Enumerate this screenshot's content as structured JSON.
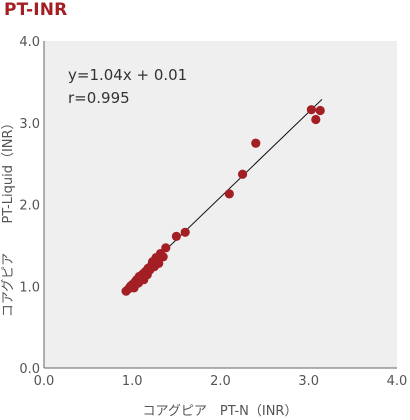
{
  "page": {
    "title": "PT-INR"
  },
  "chart_data": {
    "type": "scatter",
    "title": "",
    "xlabel": "コアグピア　PT-N（INR）",
    "ylabel_lines": [
      "コアグピア",
      "PT-Liquid（INR）"
    ],
    "xlim": [
      0.0,
      4.0
    ],
    "ylim": [
      0.0,
      4.0
    ],
    "xticks": [
      "0.0",
      "1.0",
      "2.0",
      "3.0",
      "4.0"
    ],
    "yticks": [
      "0.0",
      "1.0",
      "2.0",
      "3.0",
      "4.0"
    ],
    "plot_background": "#efefef",
    "grid": false,
    "point_color": "#a31f24",
    "regression": {
      "slope": 1.04,
      "intercept": 0.01,
      "x_range": [
        0.93,
        3.15
      ]
    },
    "annotations": [
      "y=1.04x + 0.01",
      "r=0.995"
    ],
    "points": [
      {
        "x": 0.93,
        "y": 0.94
      },
      {
        "x": 0.96,
        "y": 0.97
      },
      {
        "x": 0.98,
        "y": 1.0
      },
      {
        "x": 1.0,
        "y": 1.02
      },
      {
        "x": 1.02,
        "y": 0.98
      },
      {
        "x": 1.03,
        "y": 1.05
      },
      {
        "x": 1.05,
        "y": 1.08
      },
      {
        "x": 1.07,
        "y": 1.04
      },
      {
        "x": 1.08,
        "y": 1.12
      },
      {
        "x": 1.1,
        "y": 1.1
      },
      {
        "x": 1.12,
        "y": 1.15
      },
      {
        "x": 1.13,
        "y": 1.08
      },
      {
        "x": 1.15,
        "y": 1.18
      },
      {
        "x": 1.17,
        "y": 1.14
      },
      {
        "x": 1.18,
        "y": 1.22
      },
      {
        "x": 1.2,
        "y": 1.2
      },
      {
        "x": 1.22,
        "y": 1.26
      },
      {
        "x": 1.23,
        "y": 1.3
      },
      {
        "x": 1.25,
        "y": 1.24
      },
      {
        "x": 1.27,
        "y": 1.35
      },
      {
        "x": 1.3,
        "y": 1.28
      },
      {
        "x": 1.32,
        "y": 1.4
      },
      {
        "x": 1.35,
        "y": 1.36
      },
      {
        "x": 1.38,
        "y": 1.47
      },
      {
        "x": 1.5,
        "y": 1.61
      },
      {
        "x": 1.6,
        "y": 1.66
      },
      {
        "x": 2.1,
        "y": 2.13
      },
      {
        "x": 2.25,
        "y": 2.37
      },
      {
        "x": 2.4,
        "y": 2.75
      },
      {
        "x": 3.03,
        "y": 3.16
      },
      {
        "x": 3.08,
        "y": 3.04
      },
      {
        "x": 3.13,
        "y": 3.15
      }
    ]
  }
}
